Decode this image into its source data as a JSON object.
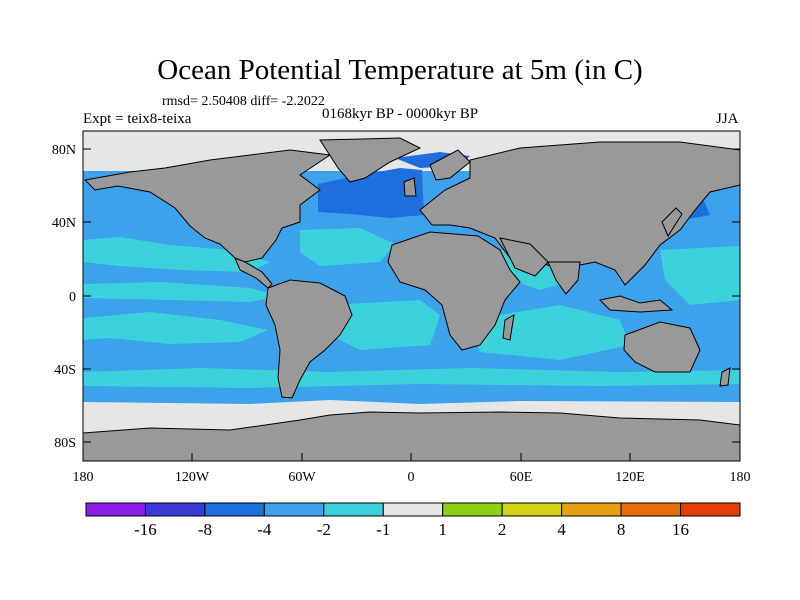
{
  "title": "Ocean Potential Temperature at 5m (in C)",
  "stats": "rmsd= 2.50408 diff= -2.2022",
  "experiment": "Expt = teix8-teixa",
  "period": "0168kyr BP - 0000kyr BP",
  "season": "JJA",
  "lat_ticks": [
    "80N",
    "40N",
    "0",
    "40S",
    "80S"
  ],
  "lon_ticks": [
    "180",
    "120W",
    "60W",
    "0",
    "60E",
    "120E",
    "180"
  ],
  "colorbar": {
    "labels": [
      "-16",
      "-8",
      "-4",
      "-2",
      "-1",
      "1",
      "2",
      "4",
      "8",
      "16"
    ],
    "colors": [
      "#8a1ee6",
      "#3a3ad8",
      "#1e6ede",
      "#3ca2ec",
      "#3cd2dc",
      "#e6e6e6",
      "#8cd214",
      "#d2d214",
      "#e6a014",
      "#e66e0a",
      "#e63c0a"
    ]
  },
  "map_colors": {
    "land": "#999999",
    "coast": "#000000",
    "ocean_base": "#3ca2ec",
    "band_warm": "#3cd2dc",
    "cold_strong": "#1e6ede",
    "neutral": "#e6e6e6"
  }
}
